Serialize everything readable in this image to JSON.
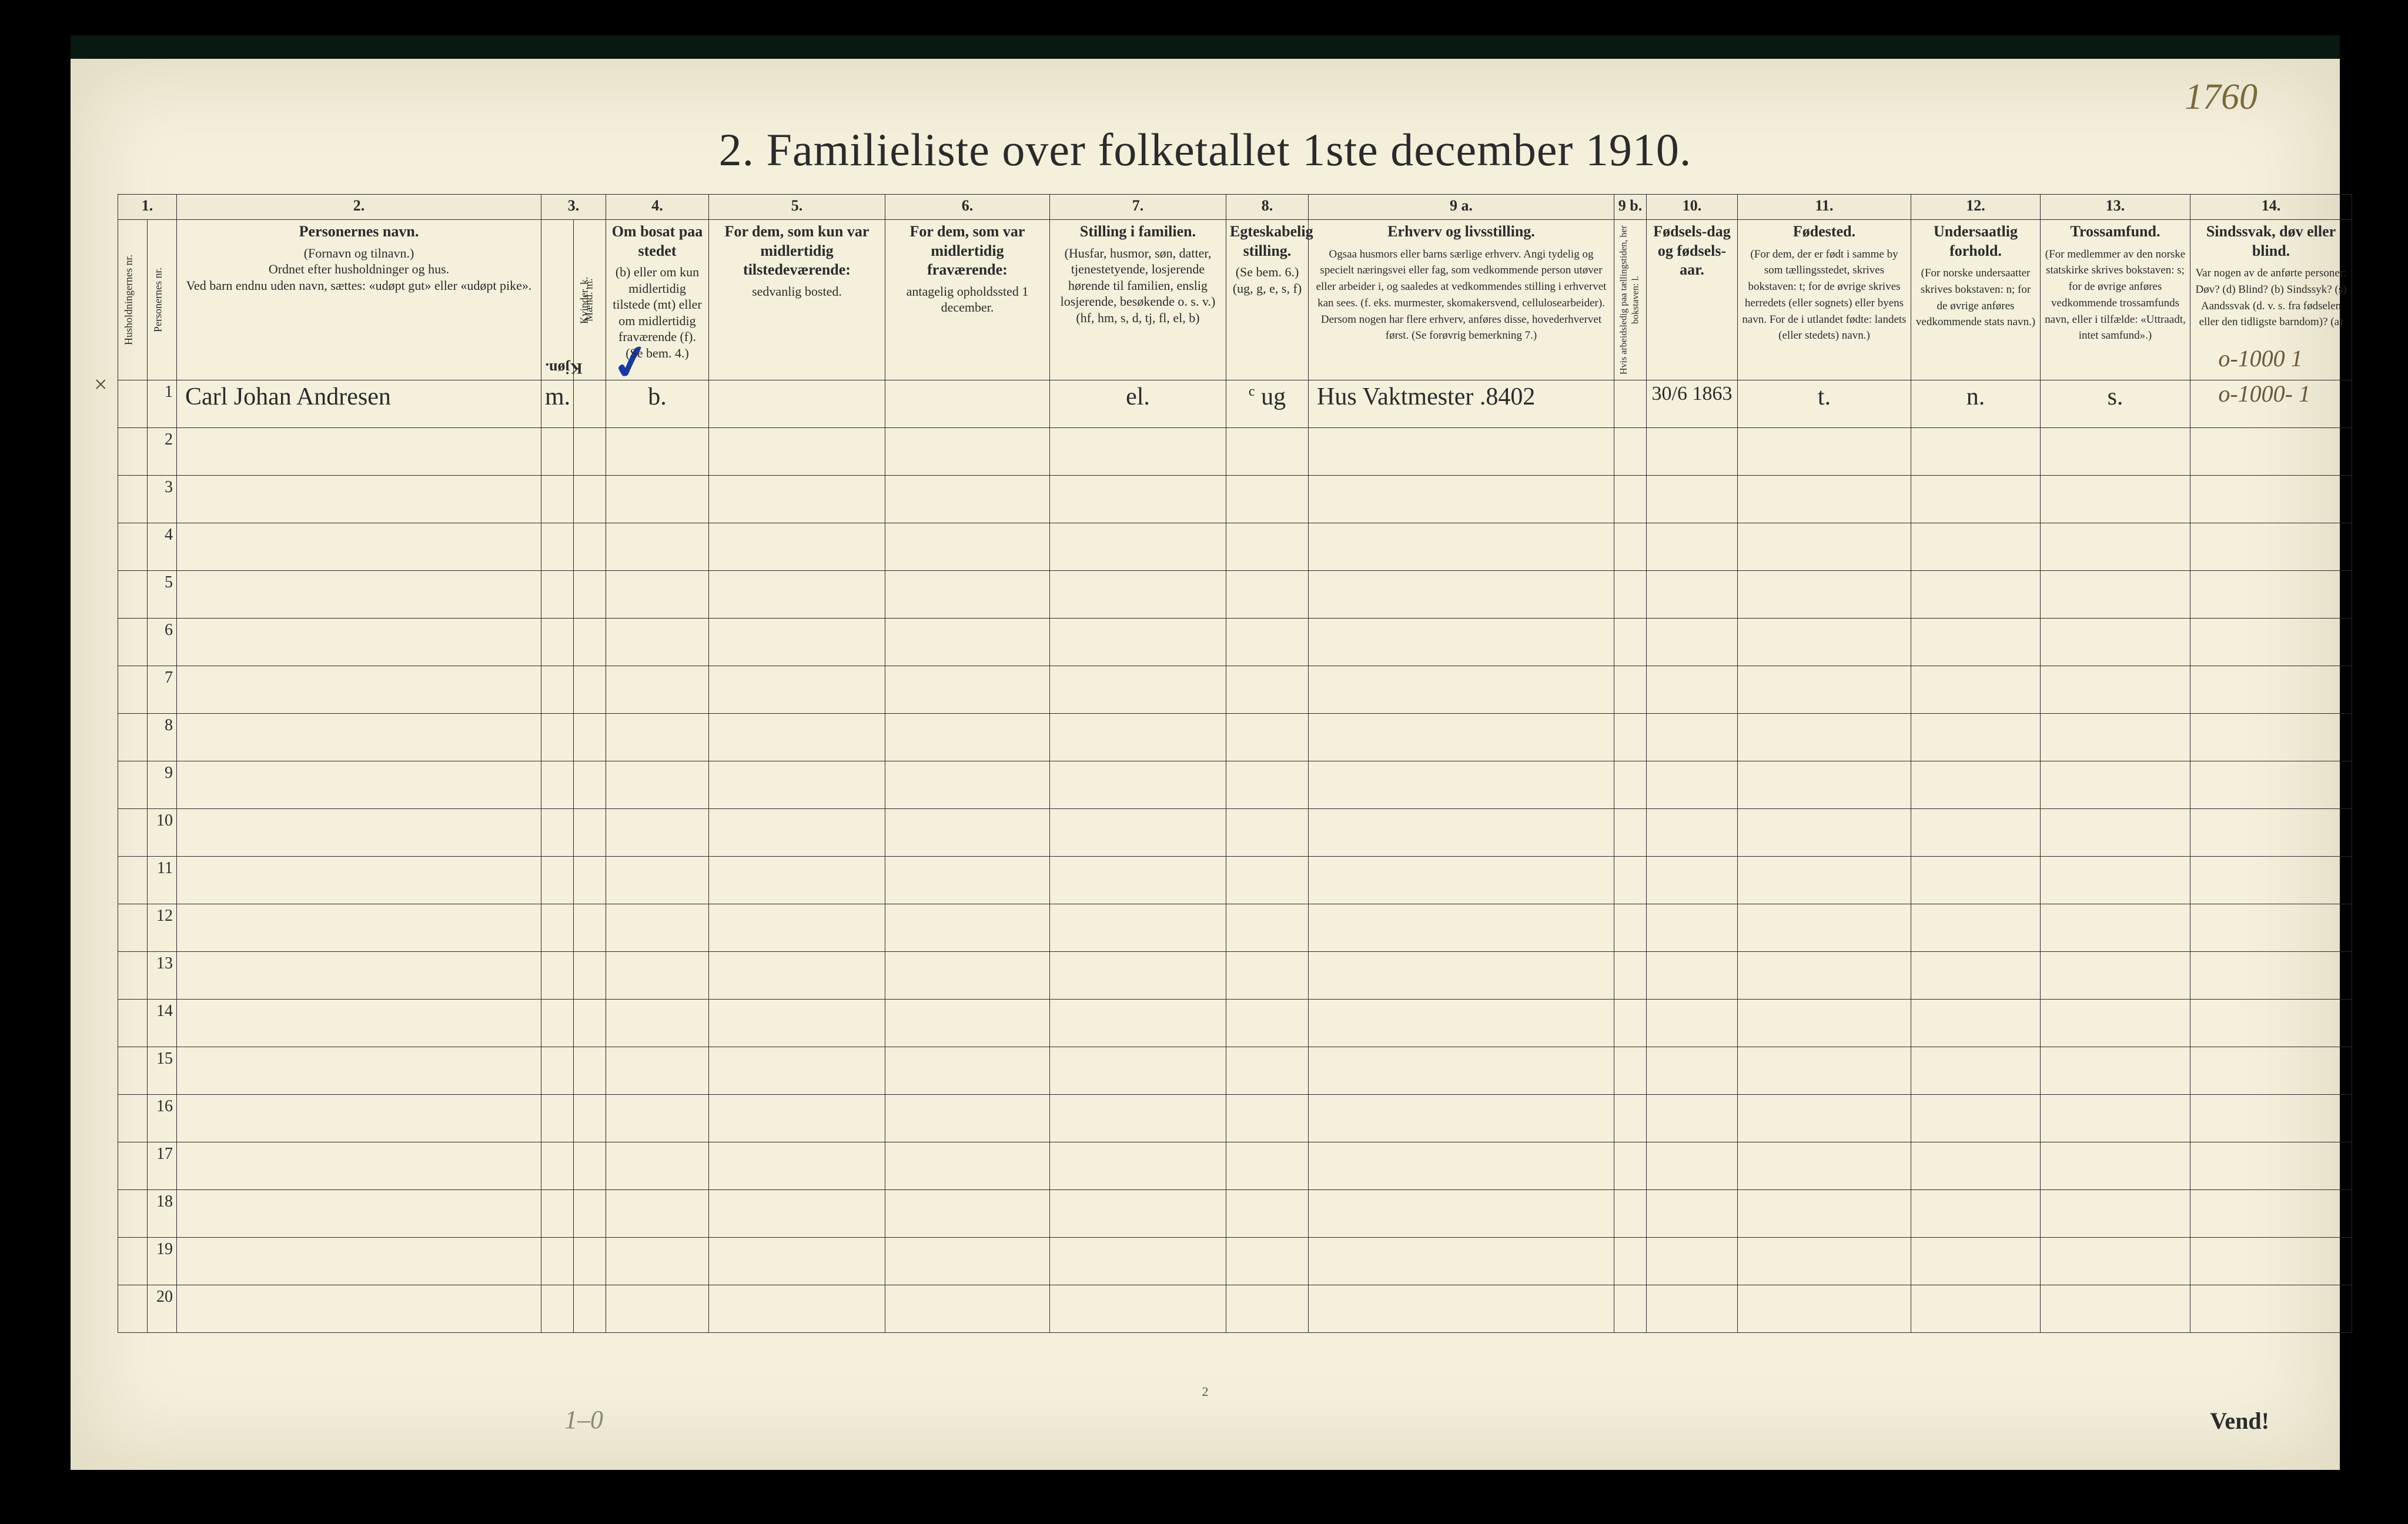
{
  "page_number_handwritten": "1760",
  "title": "2.  Familieliste over folketallet 1ste december 1910.",
  "footer_vend": "Vend!",
  "pencil_bottom_left": "1–0",
  "small_center_mark": "2",
  "pencil_right_notes": "o-1000 1\no-1000- 1",
  "x_mark": "×",
  "col_numbers": [
    "1.",
    "",
    "2.",
    "3.",
    "",
    "4.",
    "5.",
    "6.",
    "7.",
    "8.",
    "9 a.",
    "9 b.",
    "10.",
    "11.",
    "12.",
    "13.",
    "14."
  ],
  "headers": {
    "c1": "Husholdningernes nr.",
    "c1b": "Personernes nr.",
    "c2_title": "Personernes navn.",
    "c2_body": "(Fornavn og tilnavn.)\nOrdnet efter husholdninger og hus.\nVed barn endnu uden navn, sættes: «udøpt gut» eller «udøpt pike».",
    "c3_title": "Kjøn.",
    "c3a": "Mænd. m.",
    "c3b": "Kvinder. k.",
    "c4_title": "Om bosat paa stedet",
    "c4_body": "(b) eller om kun midlertidig tilstede (mt) eller om midlertidig fraværende (f). (Se bem. 4.)",
    "c5_title": "For dem, som kun var midlertidig tilstedeværende:",
    "c5_body": "sedvanlig bosted.",
    "c6_title": "For dem, som var midlertidig fraværende:",
    "c6_body": "antagelig opholdssted 1 december.",
    "c7_title": "Stilling i familien.",
    "c7_body": "(Husfar, husmor, søn, datter, tjenestetyende, losjerende hørende til familien, enslig losjerende, besøkende o. s. v.) (hf, hm, s, d, tj, fl, el, b)",
    "c8_title": "Egteskabelig stilling.",
    "c8_body": "(Se bem. 6.) (ug, g, e, s, f)",
    "c9a_title": "Erhverv og livsstilling.",
    "c9a_body": "Ogsaa husmors eller barns særlige erhverv. Angi tydelig og specielt næringsvei eller fag, som vedkommende person utøver eller arbeider i, og saaledes at vedkommendes stilling i erhvervet kan sees. (f. eks. murmester, skomakersvend, cellulosearbeider). Dersom nogen har flere erhverv, anføres disse, hovederhvervet først. (Se forøvrig bemerkning 7.)",
    "c9b": "Hvis arbeidsledig paa tællingstiden, her bokstaven: l.",
    "c10_title": "Fødsels-dag og fødsels-aar.",
    "c11_title": "Fødested.",
    "c11_body": "(For dem, der er født i samme by som tællingsstedet, skrives bokstaven: t; for de øvrige skrives herredets (eller sognets) eller byens navn. For de i utlandet fødte: landets (eller stedets) navn.)",
    "c12_title": "Undersaatlig forhold.",
    "c12_body": "(For norske undersaatter skrives bokstaven: n; for de øvrige anføres vedkommende stats navn.)",
    "c13_title": "Trossamfund.",
    "c13_body": "(For medlemmer av den norske statskirke skrives bokstaven: s; for de øvrige anføres vedkommende trossamfunds navn, eller i tilfælde: «Uttraadt, intet samfund».)",
    "c14_title": "Sindssvak, døv eller blind.",
    "c14_body": "Var nogen av de anførte personer: Døv? (d)  Blind? (b)  Sindssyk? (s)  Aandssvak (d. v. s. fra fødselen eller den tidligste barndom)? (a)"
  },
  "row1": {
    "hh": "",
    "pn": "1",
    "name": "Carl Johan Andresen",
    "sex_m": "m.",
    "sex_k": "",
    "bosat": "b.",
    "c5": "",
    "c6": "",
    "c7": "el.",
    "c8": "ug",
    "c8_sup": "c",
    "c9a": "Hus Vaktmester   .8402",
    "c9b": "",
    "c10": "30/6 1863",
    "c11": "t.",
    "c12": "n.",
    "c13": "s.",
    "c14": ""
  },
  "blank_rows": [
    2,
    3,
    4,
    5,
    6,
    7,
    8,
    9,
    10,
    11,
    12,
    13,
    14,
    15,
    16,
    17,
    18,
    19,
    20
  ]
}
